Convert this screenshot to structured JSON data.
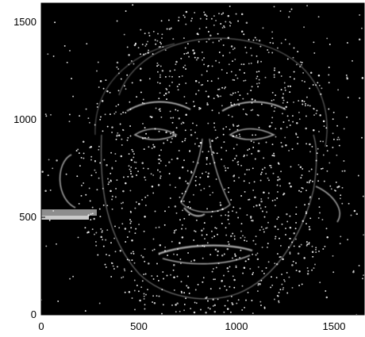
{
  "figure": {
    "type": "image",
    "description": "High-pass filtered grayscale face image with white feature-point dots overlaid",
    "x_ticks": [
      "0",
      "500",
      "1000",
      "1500"
    ],
    "y_ticks": [
      "0",
      "500",
      "1000",
      "1500"
    ],
    "x_range": [
      0,
      1650
    ],
    "y_range": [
      0,
      1600
    ],
    "colors": {
      "background": "#000000",
      "dots": "#f2f2f2",
      "edges": "#bdbdbd",
      "axis": "#000000"
    }
  }
}
